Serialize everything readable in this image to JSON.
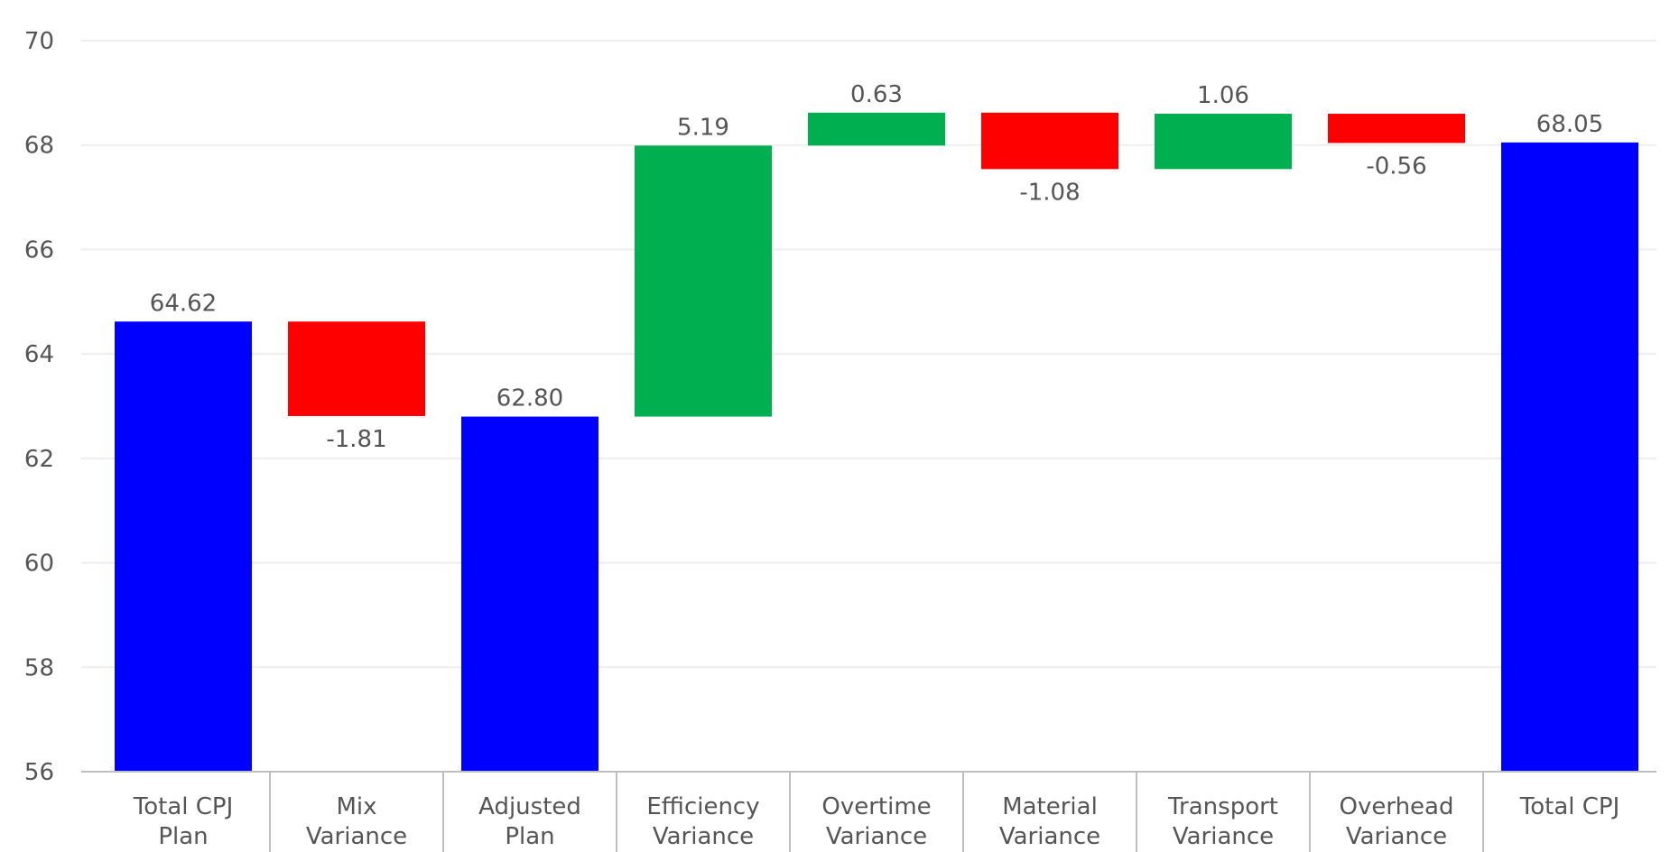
{
  "chart_data": {
    "type": "waterfall",
    "categories": [
      [
        "Total CPJ",
        "Plan"
      ],
      [
        "Mix",
        "Variance"
      ],
      [
        "Adjusted",
        "Plan"
      ],
      [
        "Efficiency",
        "Variance"
      ],
      [
        "Overtime",
        "Variance"
      ],
      [
        "Material",
        "Variance"
      ],
      [
        "Transport",
        "Variance"
      ],
      [
        "Overhead",
        "Variance"
      ],
      [
        "Total CPJ"
      ]
    ],
    "bars": [
      {
        "kind": "total",
        "value": 64.62,
        "label": "64.62"
      },
      {
        "kind": "delta",
        "value": -1.81,
        "label": "-1.81"
      },
      {
        "kind": "total",
        "value": 62.8,
        "label": "62.80"
      },
      {
        "kind": "delta",
        "value": 5.19,
        "label": "5.19"
      },
      {
        "kind": "delta",
        "value": 0.63,
        "label": "0.63"
      },
      {
        "kind": "delta",
        "value": -1.08,
        "label": "-1.08"
      },
      {
        "kind": "delta",
        "value": 1.06,
        "label": "1.06"
      },
      {
        "kind": "delta",
        "value": -0.56,
        "label": "-0.56"
      },
      {
        "kind": "total",
        "value": 68.05,
        "label": "68.05"
      }
    ],
    "ylim": [
      56,
      70
    ],
    "yticks": [
      "56",
      "58",
      "60",
      "62",
      "64",
      "66",
      "68",
      "70"
    ],
    "grid": true,
    "colors": {
      "total": "#0000ff",
      "increase": "#00b050",
      "decrease": "#ff0000",
      "grid": "#eeeeee",
      "axis": "#bfbfbf",
      "text": "#555555"
    }
  }
}
